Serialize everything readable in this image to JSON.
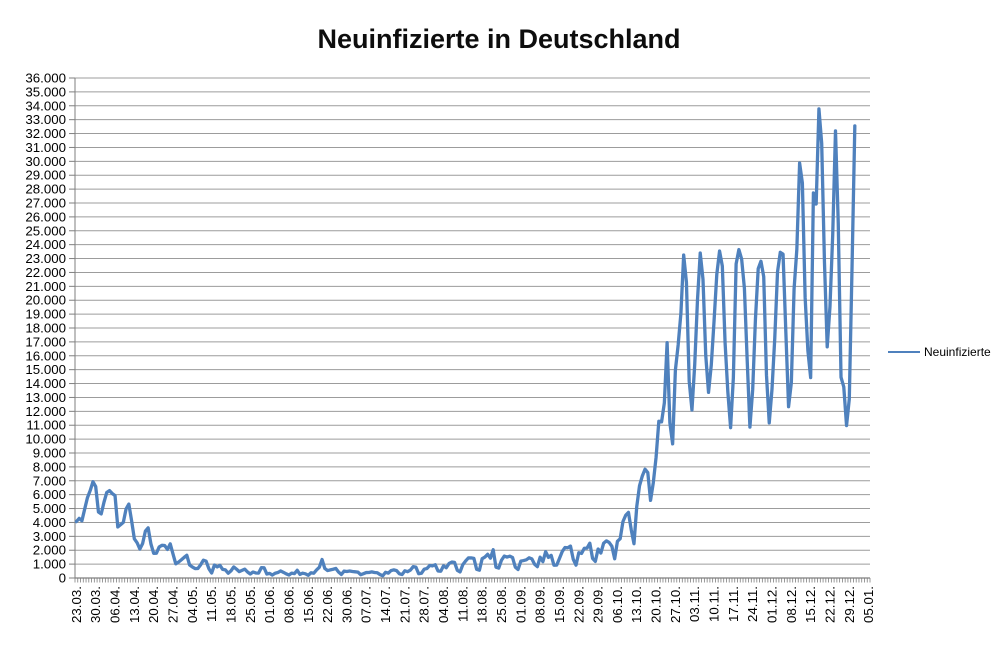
{
  "chart_data": {
    "type": "line",
    "title": "Neuinfizierte in Deutschland",
    "legend": {
      "label": "Neuinfizierte",
      "position": "right-middle"
    },
    "series_color": "#4F81BD",
    "gridline_color": "#9C9C9C",
    "axis_color": "#7F7F7F",
    "grid": true,
    "y_axis": {
      "min": 0,
      "max": 36000,
      "step": 1000,
      "tick_labels": [
        "0",
        "1.000",
        "2.000",
        "3.000",
        "4.000",
        "5.000",
        "6.000",
        "7.000",
        "8.000",
        "9.000",
        "10.000",
        "11.000",
        "12.000",
        "13.000",
        "14.000",
        "15.000",
        "16.000",
        "17.000",
        "18.000",
        "19.000",
        "20.000",
        "21.000",
        "22.000",
        "23.000",
        "24.000",
        "25.000",
        "26.000",
        "27.000",
        "28.000",
        "29.000",
        "30.000",
        "31.000",
        "32.000",
        "33.000",
        "34.000",
        "35.000",
        "36.000"
      ]
    },
    "x_axis": {
      "category_count": 288,
      "label_every": 7,
      "tick_labels": [
        "23.03.",
        "30.03.",
        "06.04.",
        "13.04.",
        "20.04.",
        "27.04.",
        "04.05.",
        "11.05.",
        "18.05.",
        "25.05.",
        "01.06.",
        "08.06.",
        "15.06.",
        "22.06.",
        "30.06.",
        "07.07.",
        "14.07.",
        "21.07.",
        "28.07.",
        "04.08.",
        "11.08.",
        "18.08.",
        "25.08.",
        "01.09.",
        "08.09.",
        "15.09.",
        "22.09.",
        "29.09.",
        "06.10.",
        "13.10.",
        "20.10.",
        "27.10.",
        "03.11.",
        "10.11.",
        "17.11.",
        "24.11.",
        "01.12.",
        "08.12.",
        "15.12.",
        "22.12.",
        "29.12.",
        "05.01."
      ],
      "note": "daily categories; axis labels jump from 22.06. to 30.06. (one category missing)"
    },
    "series": [
      {
        "name": "Neuinfizierte",
        "color": "#4F81BD",
        "values": [
          4062,
          4289,
          4118,
          4954,
          5780,
          6294,
          6933,
          6585,
          4751,
          4615,
          5453,
          6156,
          6294,
          6082,
          5936,
          3677,
          3834,
          4003,
          4974,
          5323,
          4133,
          2821,
          2537,
          2082,
          2486,
          3380,
          3609,
          2458,
          1775,
          1785,
          2237,
          2352,
          2337,
          2055,
          2458,
          1737,
          1018,
          1144,
          1304,
          1478,
          1639,
          945,
          793,
          679,
          685,
          947,
          1284,
          1209,
          667,
          357,
          933,
          798,
          913,
          620,
          583,
          342,
          513,
          797,
          639,
          460,
          548,
          638,
          431,
          289,
          432,
          362,
          353,
          741,
          738,
          286,
          333,
          213,
          342,
          394,
          507,
          407,
          301,
          214,
          350,
          318,
          555,
          258,
          348,
          301,
          192,
          378,
          345,
          580,
          770,
          1331,
          687,
          537,
          587,
          630,
          687,
          422,
          256,
          498,
          466,
          503,
          466,
          446,
          422,
          239,
          312,
          390,
          397,
          442,
          395,
          378,
          248,
          159,
          412,
          351,
          534,
          583,
          529,
          305,
          249,
          522,
          454,
          569,
          815,
          781,
          305,
          340,
          633,
          684,
          902,
          870,
          955,
          509,
          489,
          879,
          741,
          1045,
          1147,
          1122,
          555,
          436,
          966,
          1226,
          1445,
          1449,
          1415,
          625,
          561,
          1390,
          1510,
          1707,
          1427,
          2034,
          782,
          711,
          1278,
          1576,
          1507,
          1571,
          1479,
          785,
          610,
          1218,
          1256,
          1311,
          1453,
          1378,
          988,
          814,
          1499,
          1176,
          1892,
          1484,
          1630,
          920,
          927,
          1407,
          1901,
          2194,
          2179,
          2297,
          1345,
          922,
          1821,
          1769,
          2143,
          2153,
          2507,
          1411,
          1192,
          2089,
          1798,
          2503,
          2673,
          2563,
          2279,
          1382,
          2639,
          2828,
          4058,
          4516,
          4721,
          3483,
          2467,
          5132,
          6638,
          7334,
          7830,
          7595,
          5587,
          6868,
          8685,
          11287,
          11242,
          12612,
          16948,
          11176,
          9658,
          14964,
          16774,
          19059,
          23250,
          21300,
          14177,
          12097,
          15352,
          19990,
          23399,
          21506,
          16017,
          13363,
          15332,
          18487,
          21866,
          23542,
          22461,
          16947,
          13399,
          10824,
          14419,
          22609,
          23648,
          22964,
          20864,
          15741,
          10864,
          13554,
          18633,
          22268,
          22806,
          21695,
          14611,
          11169,
          13604,
          17270,
          22046,
          23449,
          23318,
          17767,
          12332,
          14054,
          20815,
          23679,
          29875,
          28438,
          20200,
          16362,
          14432,
          27728,
          26923,
          33777,
          31300,
          22771,
          16643,
          19528,
          24740,
          32195,
          25533,
          14455,
          13755,
          10976,
          12892,
          22459,
          32552
        ]
      }
    ]
  }
}
